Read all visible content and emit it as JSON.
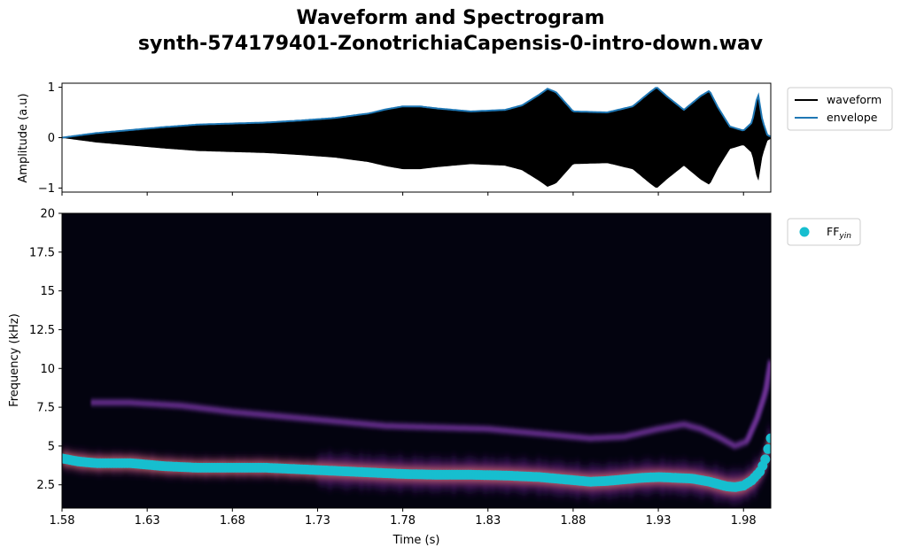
{
  "title": {
    "line1": "Waveform and Spectrogram",
    "line2": "synth-574179401-ZonotrichiaCapensis-0-intro-down.wav"
  },
  "colors": {
    "waveform": "#000000",
    "envelope": "#1f77b4",
    "ff_yin": "#17becf",
    "spectrogram_bg": "#03030f"
  },
  "chart_data": [
    {
      "type": "line",
      "panel": "waveform",
      "ylabel": "Amplitude (a.u)",
      "xlim": [
        1.58,
        1.996
      ],
      "ylim": [
        -1.08,
        1.08
      ],
      "yticks": [
        1,
        0,
        -1
      ],
      "ytick_labels": [
        "1",
        "0",
        "−1"
      ],
      "legend": "top-right outside",
      "series": [
        {
          "name": "waveform",
          "x": [
            1.58,
            1.6,
            1.62,
            1.64,
            1.66,
            1.68,
            1.7,
            1.72,
            1.74,
            1.76,
            1.77,
            1.78,
            1.79,
            1.8,
            1.82,
            1.84,
            1.85,
            1.86,
            1.865,
            1.87,
            1.88,
            1.9,
            1.915,
            1.925,
            1.929,
            1.935,
            1.945,
            1.955,
            1.96,
            1.965,
            1.972,
            1.98,
            1.985,
            1.9885,
            1.991,
            1.994,
            1.996
          ],
          "values": [
            0.0,
            0.09,
            0.15,
            0.21,
            0.26,
            0.28,
            0.3,
            0.34,
            0.39,
            0.48,
            0.56,
            0.62,
            0.62,
            0.58,
            0.52,
            0.55,
            0.64,
            0.85,
            0.97,
            0.9,
            0.52,
            0.5,
            0.62,
            0.9,
            1.0,
            0.82,
            0.55,
            0.83,
            0.93,
            0.6,
            0.22,
            0.14,
            0.3,
            0.88,
            0.35,
            0.05,
            0.02
          ]
        },
        {
          "name": "envelope",
          "x": [
            1.58,
            1.6,
            1.62,
            1.64,
            1.66,
            1.68,
            1.7,
            1.72,
            1.74,
            1.76,
            1.77,
            1.78,
            1.79,
            1.8,
            1.82,
            1.84,
            1.85,
            1.86,
            1.865,
            1.87,
            1.88,
            1.9,
            1.915,
            1.925,
            1.929,
            1.935,
            1.945,
            1.955,
            1.96,
            1.965,
            1.972,
            1.98,
            1.985,
            1.9885,
            1.991,
            1.994,
            1.996
          ],
          "values": [
            0.0,
            0.09,
            0.15,
            0.21,
            0.26,
            0.28,
            0.3,
            0.34,
            0.39,
            0.48,
            0.56,
            0.62,
            0.62,
            0.58,
            0.52,
            0.55,
            0.64,
            0.85,
            0.97,
            0.9,
            0.52,
            0.5,
            0.62,
            0.9,
            1.0,
            0.82,
            0.55,
            0.83,
            0.93,
            0.6,
            0.22,
            0.14,
            0.3,
            0.88,
            0.35,
            0.05,
            0.02
          ]
        }
      ]
    },
    {
      "type": "heatmap",
      "panel": "spectrogram",
      "xlabel": "Time (s)",
      "ylabel": "Frequency (kHz)",
      "xlim": [
        1.58,
        1.996
      ],
      "ylim": [
        1.0,
        20.0
      ],
      "xticks": [
        1.58,
        1.63,
        1.68,
        1.73,
        1.78,
        1.83,
        1.88,
        1.93,
        1.98
      ],
      "xtick_labels": [
        "1.58",
        "1.63",
        "1.68",
        "1.73",
        "1.78",
        "1.83",
        "1.88",
        "1.93",
        "1.98"
      ],
      "yticks": [
        2.5,
        5,
        7.5,
        10,
        12.5,
        15,
        17.5,
        20
      ],
      "ytick_labels": [
        "2.5",
        "5",
        "7.5",
        "10",
        "12.5",
        "15",
        "17.5",
        "20"
      ],
      "legend": "top-right outside",
      "colormap": "magma",
      "harmonic_2": {
        "x": [
          1.597,
          1.62,
          1.65,
          1.68,
          1.71,
          1.74,
          1.77,
          1.8,
          1.83,
          1.86,
          1.89,
          1.91,
          1.93,
          1.945,
          1.955,
          1.965,
          1.975,
          1.982,
          1.988,
          1.993,
          1.996
        ],
        "values": [
          7.8,
          7.8,
          7.6,
          7.2,
          6.9,
          6.6,
          6.3,
          6.2,
          6.1,
          5.8,
          5.5,
          5.6,
          6.1,
          6.4,
          6.1,
          5.6,
          5.0,
          5.3,
          6.8,
          8.5,
          10.5
        ]
      },
      "series": [
        {
          "name": "FF$_{yin}$",
          "x": [
            1.58,
            1.59,
            1.6,
            1.61,
            1.62,
            1.63,
            1.64,
            1.66,
            1.68,
            1.7,
            1.72,
            1.74,
            1.76,
            1.78,
            1.8,
            1.82,
            1.84,
            1.86,
            1.87,
            1.88,
            1.89,
            1.9,
            1.91,
            1.92,
            1.93,
            1.94,
            1.95,
            1.96,
            1.97,
            1.975,
            1.98,
            1.985,
            1.99,
            1.993,
            1.996
          ],
          "values": [
            4.2,
            4.0,
            3.9,
            3.9,
            3.9,
            3.8,
            3.7,
            3.6,
            3.6,
            3.6,
            3.5,
            3.4,
            3.3,
            3.2,
            3.15,
            3.15,
            3.1,
            3.0,
            2.9,
            2.8,
            2.7,
            2.75,
            2.85,
            2.95,
            3.0,
            2.95,
            2.9,
            2.7,
            2.4,
            2.35,
            2.45,
            2.8,
            3.4,
            4.2,
            5.5
          ]
        }
      ]
    }
  ]
}
